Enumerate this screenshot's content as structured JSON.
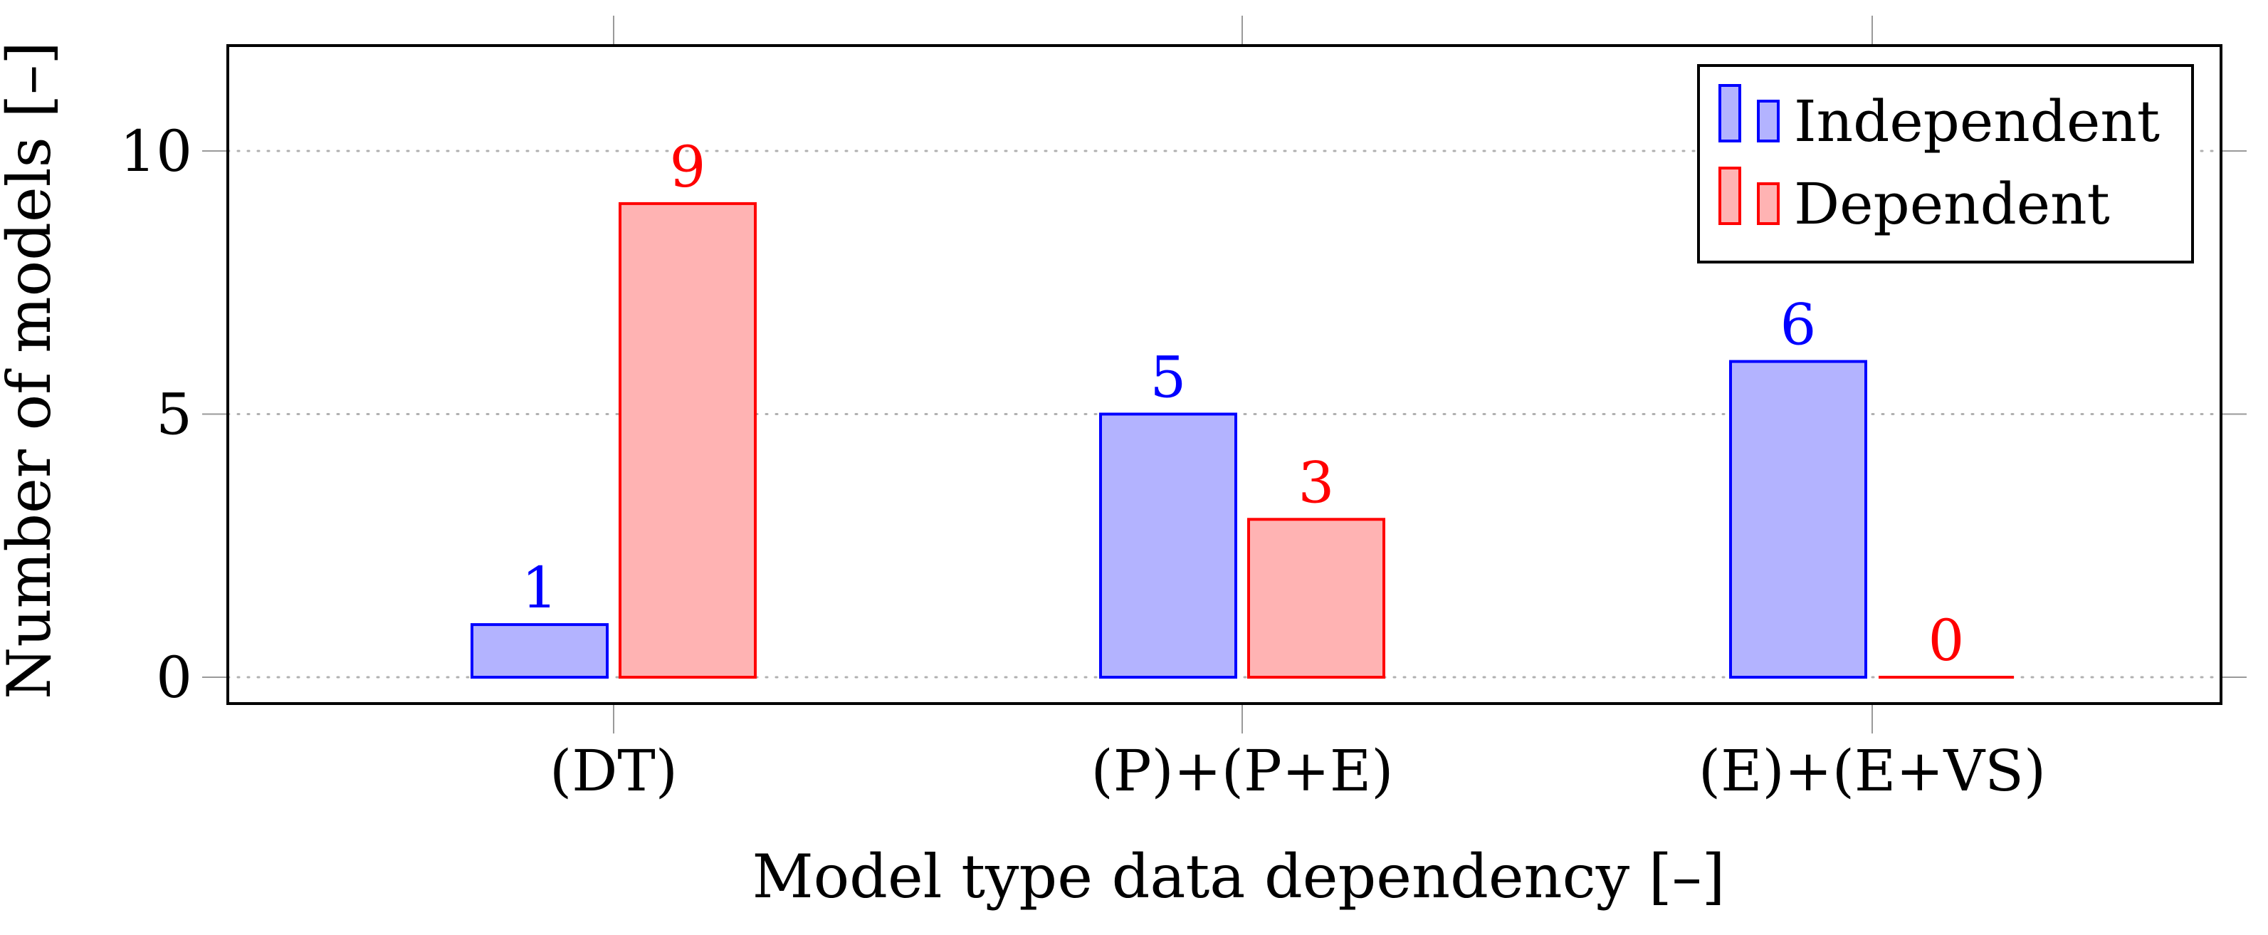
{
  "chart_data": {
    "type": "bar",
    "title": "",
    "xlabel": "Model type data dependency [–]",
    "ylabel": "Number of models [–]",
    "categories": [
      "(DT)",
      "(P)+(P+E)",
      "(E)+(E+VS)"
    ],
    "series": [
      {
        "name": "Independent",
        "values": [
          1,
          5,
          6
        ],
        "stroke": "#0000ff",
        "fill": "#b3b3ff",
        "label_color": "#0000ff"
      },
      {
        "name": "Dependent",
        "values": [
          9,
          3,
          0
        ],
        "stroke": "#ff0000",
        "fill": "#ffb3b3",
        "label_color": "#ff0000"
      }
    ],
    "ylim": [
      0,
      12
    ],
    "yticks": [
      0,
      5,
      10
    ],
    "ytick_labels": [
      "0",
      "5",
      "10"
    ],
    "grid": "horizontal-dotted",
    "legend_position": "top-right"
  }
}
